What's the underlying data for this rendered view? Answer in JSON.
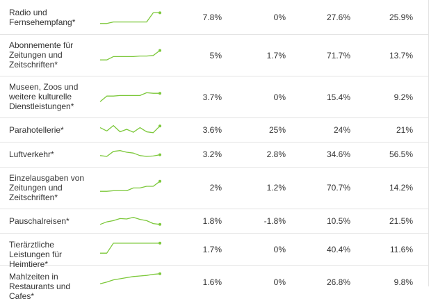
{
  "accent_color": "#7cc83a",
  "rows": [
    {
      "label": "Radio und Fernsehempfang*",
      "v1": "7.8%",
      "v2": "0%",
      "v3": "27.6%",
      "v4": "25.9%",
      "spark": [
        0.1,
        0.1,
        0.2,
        0.2,
        0.2,
        0.2,
        0.2,
        0.2,
        0.8,
        0.8
      ]
    },
    {
      "label": "Abonnemente für Zeitungen und Zeitschriften*",
      "v1": "5%",
      "v2": "1.7%",
      "v3": "71.7%",
      "v4": "13.7%",
      "spark": [
        0.05,
        0.05,
        0.35,
        0.35,
        0.35,
        0.35,
        0.4,
        0.4,
        0.45,
        0.9
      ]
    },
    {
      "label": "Museen, Zoos und weitere kulturelle Dienstleistungen*",
      "v1": "3.7%",
      "v2": "0%",
      "v3": "15.4%",
      "v4": "9.2%",
      "spark": [
        0.05,
        0.55,
        0.55,
        0.6,
        0.6,
        0.6,
        0.6,
        0.85,
        0.8,
        0.8
      ]
    },
    {
      "label": "Parahotellerie*",
      "v1": "3.6%",
      "v2": "25%",
      "v3": "24%",
      "v4": "21%",
      "spark": [
        0.7,
        0.3,
        0.95,
        0.2,
        0.5,
        0.15,
        0.7,
        0.2,
        0.1,
        0.9
      ]
    },
    {
      "label": "Luftverkehr*",
      "v1": "3.2%",
      "v2": "2.8%",
      "v3": "34.6%",
      "v4": "56.5%",
      "spark": [
        0.35,
        0.25,
        0.85,
        0.95,
        0.75,
        0.65,
        0.35,
        0.25,
        0.3,
        0.45
      ]
    },
    {
      "label": "Einzelausgaben von Zeitungen und Zeitschriften*",
      "v1": "2%",
      "v2": "1.2%",
      "v3": "70.7%",
      "v4": "14.2%",
      "spark": [
        0.05,
        0.05,
        0.1,
        0.1,
        0.1,
        0.35,
        0.35,
        0.5,
        0.5,
        0.95
      ]
    },
    {
      "label": "Pauschalreisen*",
      "v1": "1.8%",
      "v2": "-1.8%",
      "v3": "10.5%",
      "v4": "21.5%",
      "spark": [
        0.1,
        0.4,
        0.55,
        0.8,
        0.75,
        0.95,
        0.7,
        0.55,
        0.2,
        0.1
      ]
    },
    {
      "label": "Tierärztliche Leistungen für Heimtiere*",
      "v1": "1.7%",
      "v2": "0%",
      "v3": "40.4%",
      "v4": "11.6%",
      "spark": [
        0.05,
        0.05,
        0.95,
        0.95,
        0.95,
        0.95,
        0.95,
        0.95,
        0.95,
        0.95
      ]
    },
    {
      "label": "Mahlzeiten in Restaurants und Cafes*",
      "v1": "1.6%",
      "v2": "0%",
      "v3": "26.8%",
      "v4": "9.8%",
      "spark": [
        0.05,
        0.2,
        0.4,
        0.5,
        0.6,
        0.7,
        0.75,
        0.8,
        0.9,
        0.95
      ]
    }
  ]
}
